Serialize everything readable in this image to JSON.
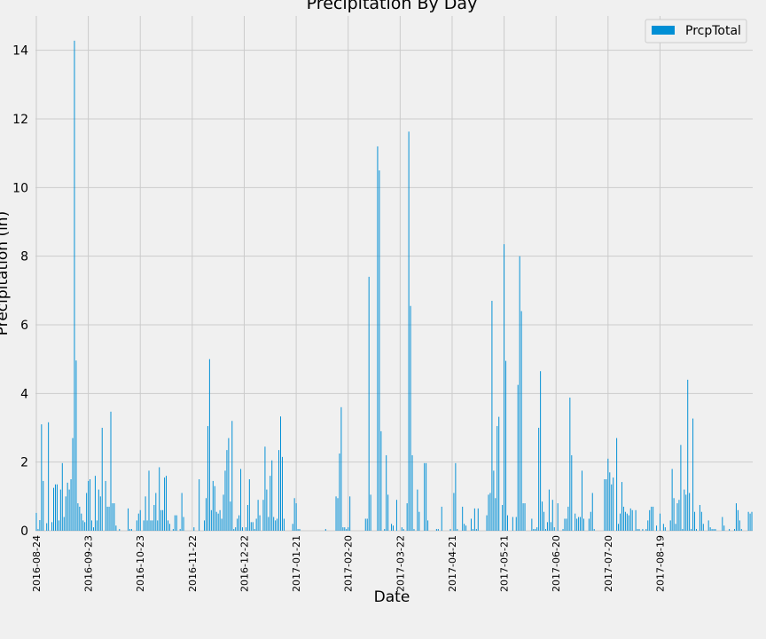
{
  "chart_data": {
    "type": "bar",
    "title": "Precipitation By Day",
    "xlabel": "Date",
    "ylabel": "Precipitation (in)",
    "ylim": [
      0,
      15
    ],
    "y_ticks": [
      0,
      2,
      4,
      6,
      8,
      10,
      12,
      14
    ],
    "x_tick_labels": [
      "2016-08-24",
      "2016-09-23",
      "2016-10-23",
      "2016-11-22",
      "2016-12-22",
      "2017-01-21",
      "2017-02-20",
      "2017-03-22",
      "2017-04-21",
      "2017-05-21",
      "2017-06-20",
      "2017-07-20",
      "2017-08-19"
    ],
    "grid": true,
    "legend_position": "top-right",
    "series": [
      {
        "name": "PrcpTotal",
        "color": "#008fd5",
        "values": [
          0.52,
          0.05,
          0.31,
          3.1,
          1.45,
          0.0,
          0.22,
          3.16,
          0.0,
          0.25,
          1.25,
          1.35,
          1.35,
          0.3,
          1.2,
          1.97,
          0.4,
          1.0,
          1.4,
          1.2,
          1.5,
          2.7,
          14.28,
          4.96,
          0.8,
          0.7,
          0.5,
          0.3,
          0.25,
          1.1,
          1.45,
          1.5,
          0.3,
          0.1,
          1.6,
          0.3,
          1.2,
          1.0,
          3.0,
          0.0,
          1.45,
          0.7,
          0.7,
          3.47,
          0.8,
          0.8,
          0.15,
          0.0,
          0.05,
          0.0,
          0.0,
          0.0,
          0.0,
          0.65,
          0.05,
          0.05,
          0.0,
          0.0,
          0.3,
          0.5,
          0.6,
          0.0,
          0.3,
          1.0,
          0.3,
          1.75,
          0.3,
          0.3,
          0.75,
          1.1,
          0.3,
          1.85,
          0.6,
          0.6,
          1.55,
          1.6,
          0.3,
          0.2,
          0.0,
          0.05,
          0.45,
          0.45,
          0.0,
          0.05,
          1.1,
          0.4,
          0.0,
          0.0,
          0.0,
          0.0,
          0.0,
          0.1,
          0.0,
          0.0,
          1.5,
          0.0,
          0.0,
          0.3,
          0.95,
          3.05,
          5.0,
          0.6,
          1.45,
          1.3,
          0.55,
          0.5,
          0.6,
          0.35,
          1.05,
          1.75,
          2.35,
          2.7,
          0.85,
          3.2,
          0.05,
          0.1,
          0.35,
          0.45,
          1.8,
          0.1,
          0.0,
          0.1,
          0.75,
          1.5,
          0.25,
          0.25,
          0.05,
          0.35,
          0.9,
          0.45,
          0.0,
          0.9,
          2.45,
          1.2,
          0.4,
          1.6,
          2.05,
          0.4,
          0.3,
          0.35,
          2.35,
          3.33,
          2.15,
          0.35,
          0.0,
          0.0,
          0.0,
          0.0,
          0.2,
          0.95,
          0.8,
          0.05,
          0.05,
          0.0,
          0.0,
          0.0,
          0.0,
          0.0,
          0.0,
          0.0,
          0.0,
          0.0,
          0.0,
          0.0,
          0.0,
          0.0,
          0.0,
          0.05,
          0.0,
          0.0,
          0.0,
          0.0,
          0.0,
          1.0,
          0.95,
          2.25,
          3.6,
          0.1,
          0.1,
          0.05,
          0.1,
          1.0,
          0.0,
          0.0,
          0.0,
          0.0,
          0.0,
          0.0,
          0.0,
          0.0,
          0.35,
          0.35,
          7.4,
          1.05,
          0.0,
          0.0,
          0.0,
          11.2,
          10.5,
          2.9,
          0.0,
          0.05,
          2.2,
          1.05,
          0.0,
          0.2,
          0.15,
          0.0,
          0.9,
          0.0,
          0.0,
          0.1,
          0.05,
          0.0,
          0.8,
          11.63,
          6.55,
          2.2,
          0.05,
          0.0,
          1.2,
          0.55,
          0.0,
          0.0,
          1.97,
          1.97,
          0.3,
          0.0,
          0.0,
          0.0,
          0.0,
          0.05,
          0.05,
          0.0,
          0.7,
          0.0,
          0.0,
          0.0,
          0.0,
          0.05,
          0.0,
          1.1,
          1.97,
          0.05,
          0.0,
          0.0,
          0.7,
          0.2,
          0.15,
          0.0,
          0.0,
          0.35,
          0.05,
          0.65,
          0.05,
          0.65,
          0.0,
          0.0,
          0.0,
          0.0,
          0.45,
          1.05,
          1.1,
          6.7,
          1.75,
          0.95,
          3.05,
          3.32,
          0.0,
          0.75,
          8.35,
          4.95,
          0.45,
          0.0,
          0.0,
          0.4,
          0.0,
          0.4,
          4.25,
          8.0,
          6.4,
          0.8,
          0.8,
          0.0,
          0.0,
          0.0,
          0.35,
          0.05,
          0.05,
          0.1,
          3.0,
          4.65,
          0.85,
          0.55,
          0.05,
          0.25,
          1.2,
          0.25,
          0.9,
          0.1,
          0.0,
          0.8,
          0.0,
          0.0,
          0.05,
          0.35,
          0.35,
          0.7,
          3.88,
          2.2,
          0.0,
          0.5,
          0.35,
          0.4,
          0.4,
          1.75,
          0.35,
          0.0,
          0.0,
          0.35,
          0.55,
          1.1,
          0.05,
          0.0,
          0.0,
          0.0,
          0.0,
          0.0,
          1.5,
          1.5,
          2.1,
          1.7,
          1.35,
          1.55,
          0.0,
          2.7,
          0.2,
          0.5,
          1.42,
          0.7,
          0.55,
          0.5,
          0.45,
          0.65,
          0.6,
          0.0,
          0.6,
          0.05,
          0.05,
          0.0,
          0.05,
          0.0,
          0.05,
          0.3,
          0.6,
          0.7,
          0.7,
          0.0,
          0.15,
          0.0,
          0.5,
          0.0,
          0.2,
          0.1,
          0.0,
          0.0,
          0.3,
          1.8,
          0.95,
          0.2,
          0.8,
          0.9,
          2.5,
          0.05,
          1.2,
          1.05,
          4.4,
          1.1,
          0.05,
          3.27,
          0.55,
          0.05,
          0.0,
          0.75,
          0.55,
          0.2,
          0.0,
          0.0,
          0.3,
          0.1,
          0.05,
          0.05,
          0.05,
          0.0,
          0.0,
          0.0,
          0.4,
          0.15,
          0.0,
          0.0,
          0.05,
          0.0,
          0.0,
          0.05,
          0.8,
          0.6,
          0.3,
          0.05,
          0.0,
          0.0,
          0.0,
          0.55,
          0.5,
          0.55
        ]
      }
    ]
  }
}
